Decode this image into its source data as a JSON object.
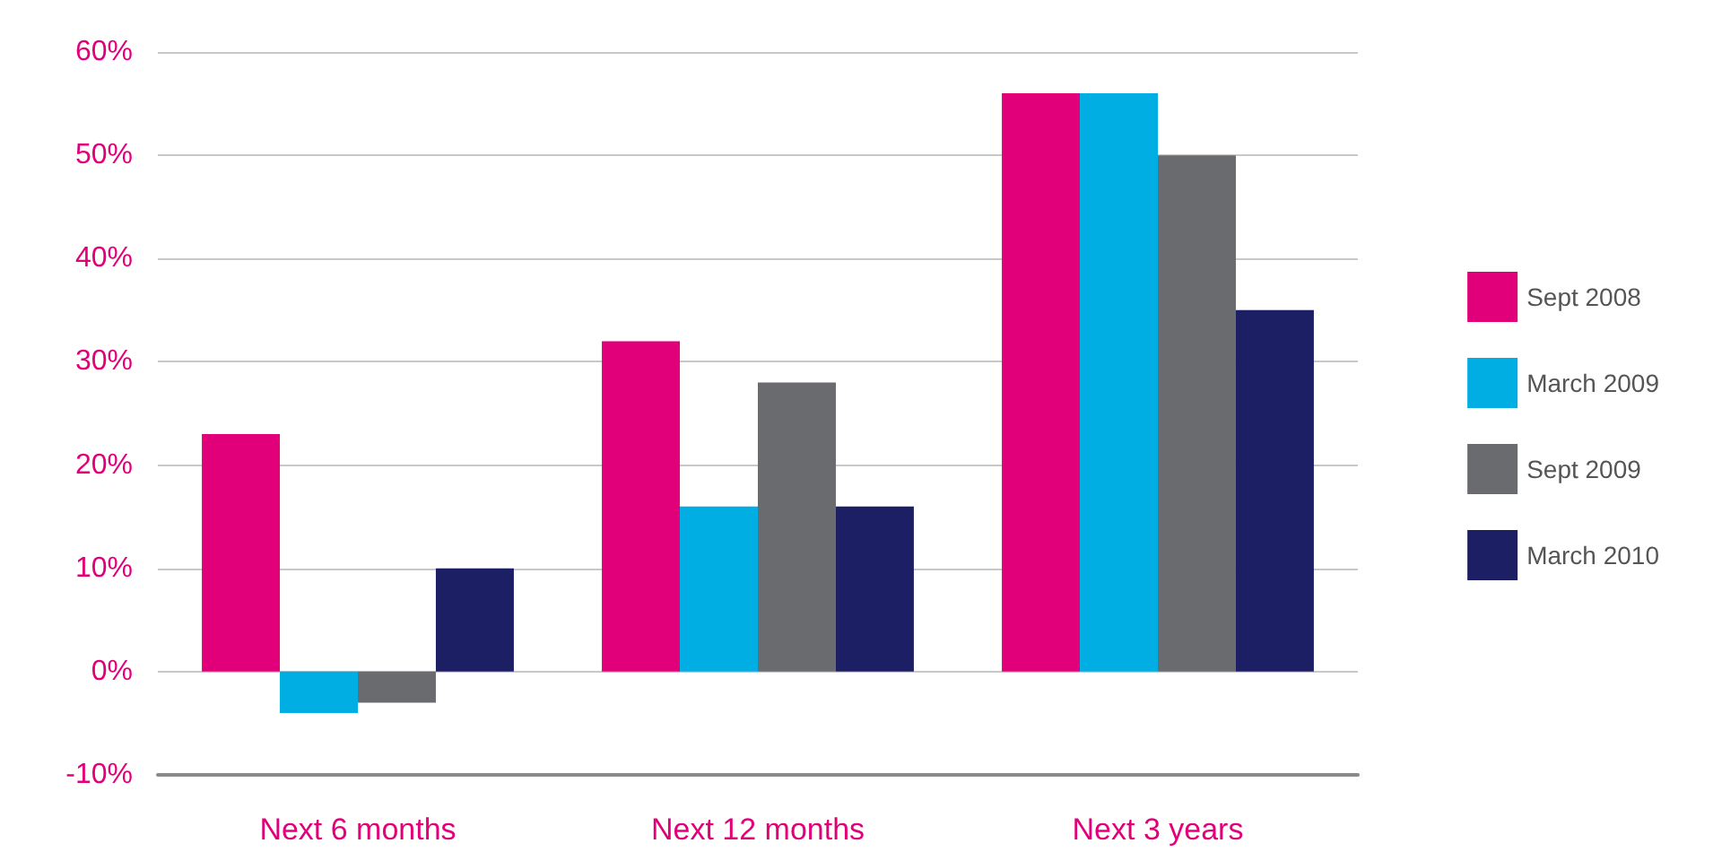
{
  "chart_data": {
    "type": "bar",
    "categories": [
      "Next 6 months",
      "Next 12 months",
      "Next 3 years"
    ],
    "series": [
      {
        "name": "Sept 2008",
        "color": "#e2007a",
        "values": [
          23,
          32,
          56
        ]
      },
      {
        "name": "March 2009",
        "color": "#00aee3",
        "values": [
          -4,
          16,
          56
        ]
      },
      {
        "name": "Sept 2009",
        "color": "#6a6b6f",
        "values": [
          -3,
          28,
          50
        ]
      },
      {
        "name": "March 2010",
        "color": "#1d1f64",
        "values": [
          10,
          16,
          35
        ]
      }
    ],
    "ylim": [
      -10,
      60
    ],
    "yticks": [
      {
        "value": -10,
        "label": "-10%"
      },
      {
        "value": 0,
        "label": "0%"
      },
      {
        "value": 10,
        "label": "10%"
      },
      {
        "value": 20,
        "label": "20%"
      },
      {
        "value": 30,
        "label": "30%"
      },
      {
        "value": 40,
        "label": "40%"
      },
      {
        "value": 50,
        "label": "50%"
      },
      {
        "value": 60,
        "label": "60%"
      }
    ],
    "grid": "y",
    "legend": "right"
  }
}
